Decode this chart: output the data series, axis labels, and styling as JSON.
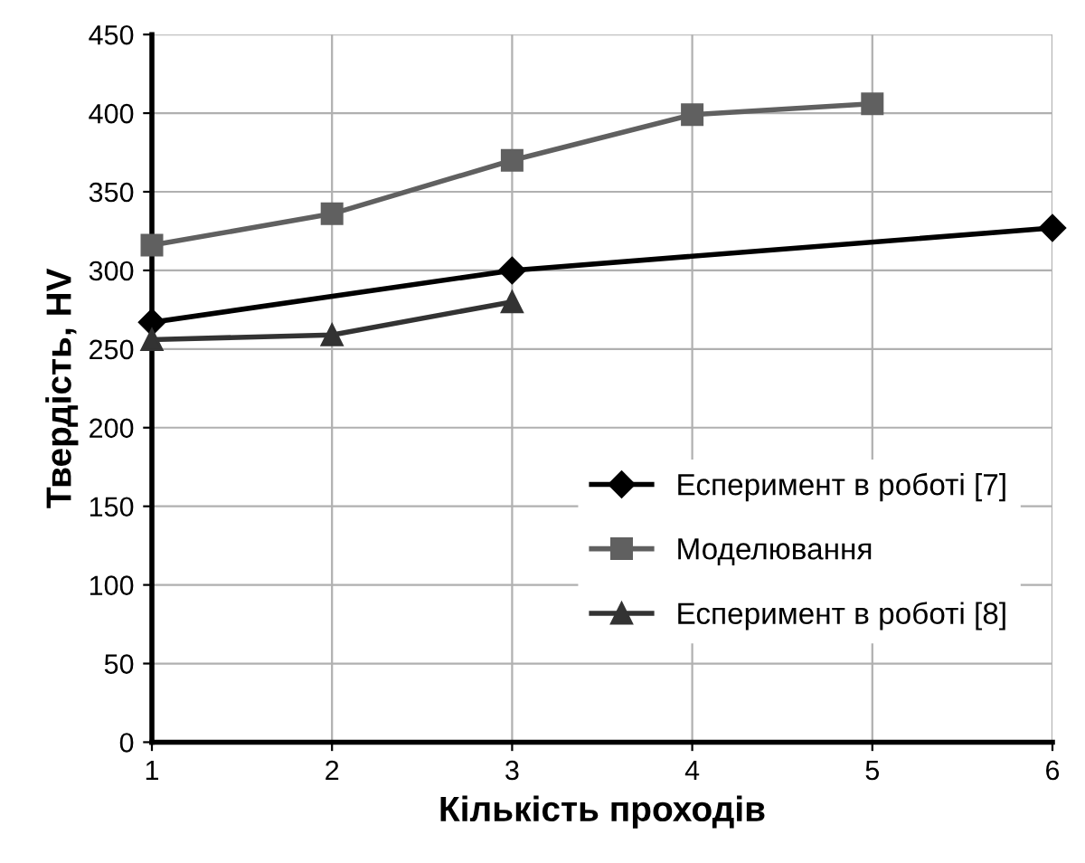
{
  "chart_data": {
    "type": "line",
    "xlabel": "Кількість проходів",
    "ylabel": "Твердість, HV",
    "xlim": [
      1,
      6
    ],
    "xticks": [
      1,
      2,
      3,
      4,
      5,
      6
    ],
    "ylim": [
      0,
      450
    ],
    "yticks": [
      0,
      50,
      100,
      150,
      200,
      250,
      300,
      350,
      400,
      450
    ],
    "grid": true,
    "legend": "bottom right",
    "line_style": "solid",
    "series": [
      {
        "name": "Есперимент в роботі [7]",
        "color": "#000000",
        "marker": "diamond",
        "x": [
          1,
          3,
          6
        ],
        "values": [
          267,
          300,
          327
        ]
      },
      {
        "name": "Моделювання",
        "color": "#606060",
        "marker": "square",
        "x": [
          1,
          2,
          3,
          4,
          5
        ],
        "values": [
          316,
          336,
          370,
          399,
          406
        ]
      },
      {
        "name": "Есперимент в роботі [8]",
        "color": "#333333",
        "marker": "triangle",
        "x": [
          1,
          2,
          3
        ],
        "values": [
          256,
          259,
          280
        ]
      }
    ]
  }
}
